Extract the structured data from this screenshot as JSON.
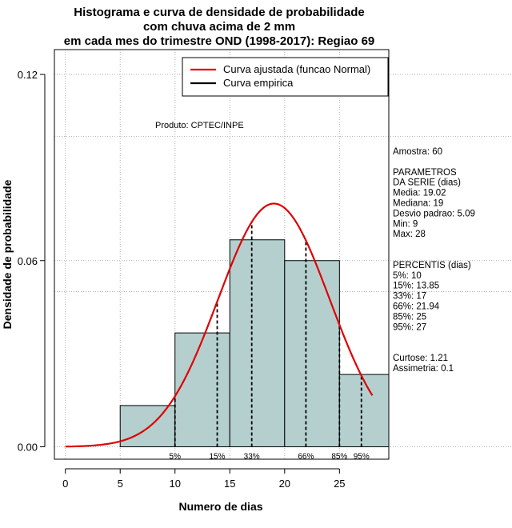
{
  "chart_data": {
    "type": "bar",
    "title_lines": [
      "Histograma e curva de densidade de probabilidade",
      "com chuva acima de 2 mm",
      "em cada mes do trimestre OND (1998-2017): Regiao 69"
    ],
    "xlabel": "Numero de dias",
    "ylabel": "Densidade de probabilidade",
    "xlim": [
      -1,
      29.5
    ],
    "ylim": [
      -0.004,
      0.128
    ],
    "xticks": [
      0,
      5,
      10,
      15,
      20,
      25
    ],
    "yticks": [
      0.0,
      0.06,
      0.12
    ],
    "ytick_labels": [
      "0.00",
      "0.06",
      "0.12"
    ],
    "hgrid_extra": [
      0.1,
      0.05
    ],
    "bins": [
      {
        "from": 5,
        "to": 10,
        "density": 0.0133
      },
      {
        "from": 10,
        "to": 15,
        "density": 0.0367
      },
      {
        "from": 15,
        "to": 20,
        "density": 0.0667
      },
      {
        "from": 20,
        "to": 25,
        "density": 0.06
      },
      {
        "from": 25,
        "to": 29.5,
        "density": 0.0233
      }
    ],
    "bar_color": "#b5cfcf",
    "curve": {
      "name": "Curva ajustada (funcao Normal)",
      "mean": 19.02,
      "sd": 5.09,
      "from": 0,
      "to": 28,
      "color": "#e00000"
    },
    "empirical_name": "Curva empirica",
    "percentiles": [
      {
        "label": "5%",
        "x": 10
      },
      {
        "label": "15%",
        "x": 13.85
      },
      {
        "label": "33%",
        "x": 17
      },
      {
        "label": "66%",
        "x": 21.94
      },
      {
        "label": "85%",
        "x": 25
      },
      {
        "label": "95%",
        "x": 27
      }
    ],
    "product_label": "Produto: CPTEC/INPE",
    "stats_lines": [
      "Amostra: 60",
      "",
      " PARAMETROS",
      "DA SERIE (dias)",
      "  Media: 19.02",
      "  Mediana: 19",
      "  Desvio padrao: 5.09",
      "  Min: 9",
      "  Max: 28",
      "",
      "",
      "PERCENTIS (dias)",
      "  5%: 10",
      "  15%: 13.85",
      "  33%: 17",
      "  66%: 21.94",
      "  85%: 25",
      "  95%: 27",
      "",
      "",
      "   Curtose: 1.21",
      "  Assimetria: 0.1"
    ]
  }
}
